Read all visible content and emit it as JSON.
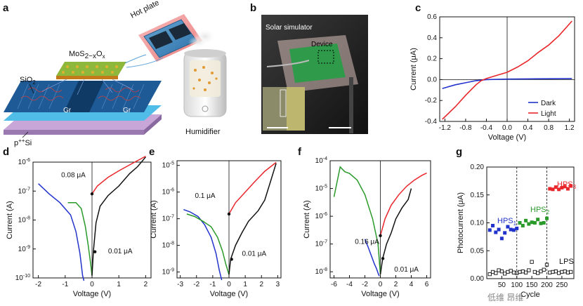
{
  "panels": {
    "a": {
      "label": "a",
      "texts": {
        "hot_plate": "Hot plate",
        "material": "MoS",
        "material_sub": "2−x",
        "material_o": "O",
        "material_o_sub": "x",
        "sio2": "SiO",
        "sio2_sub": "2",
        "gr1": "Gr",
        "gr2": "Gr",
        "substrate": "p",
        "substrate_sup": "++",
        "substrate_si": "Si",
        "humidifier": "Humidifier"
      }
    },
    "b": {
      "label": "b",
      "texts": {
        "solar_simulator": "Solar simulator",
        "device": "Device"
      }
    },
    "c": {
      "label": "c",
      "xlabel": "Voltage (V)",
      "ylabel": "Current (μA)",
      "legend": [
        "Dark",
        "Light"
      ]
    },
    "d": {
      "label": "d",
      "xlabel": "Voltage (V)",
      "ylabel": "Current (A)",
      "ann1": "0.08 μA",
      "ann2": "0.01 μA"
    },
    "e": {
      "label": "e",
      "xlabel": "Voltage (V)",
      "ylabel": "Current (A)",
      "ann1": "0.1 μA",
      "ann2": "0.01 μA"
    },
    "f": {
      "label": "f",
      "xlabel": "Voltage (V)",
      "ylabel": "Current (A)",
      "ann1": "0.16 μA",
      "ann2": "0.01 μA"
    },
    "g": {
      "label": "g",
      "xlabel": "Cycle",
      "ylabel": "Photocurrent (μA)",
      "hps1": "HPS",
      "hps1_sub": "1",
      "hps2": "HPS",
      "hps2_sub": "2",
      "hps3": "HPS",
      "hps3_sub": "3",
      "lps": "LPS"
    }
  },
  "watermark": "低维 昂维",
  "colors": {
    "dark": "#2233cc",
    "light": "#e8262b",
    "green": "#2a9a2a",
    "black": "#111111"
  },
  "chart_data": [
    {
      "panel": "c",
      "type": "line",
      "xlabel": "Voltage (V)",
      "ylabel": "Current (μA)",
      "xlim": [
        -1.3,
        1.3
      ],
      "ylim": [
        -0.4,
        0.6
      ],
      "xticks": [
        "-1.2",
        "-0.8",
        "-0.4",
        "0.0",
        "0.4",
        "0.8",
        "1.2"
      ],
      "yticks": [
        "-0.4",
        "-0.2",
        "0.0",
        "0.2",
        "0.4",
        "0.6"
      ],
      "legend_position": "bottom-right",
      "series": [
        {
          "name": "Dark",
          "color": "#2233cc",
          "x": [
            -1.25,
            -1.0,
            -0.8,
            -0.6,
            -0.4,
            -0.2,
            0.0,
            0.4,
            0.8,
            1.25
          ],
          "y": [
            -0.085,
            -0.05,
            -0.03,
            -0.01,
            0.0,
            0.002,
            0.005,
            0.007,
            0.008,
            0.01
          ]
        },
        {
          "name": "Light",
          "color": "#e8262b",
          "x": [
            -1.25,
            -1.0,
            -0.8,
            -0.6,
            -0.5,
            -0.4,
            -0.2,
            0.0,
            0.2,
            0.4,
            0.6,
            0.8,
            1.0,
            1.25
          ],
          "y": [
            -0.38,
            -0.26,
            -0.15,
            -0.05,
            -0.01,
            0.01,
            0.04,
            0.07,
            0.12,
            0.18,
            0.26,
            0.33,
            0.42,
            0.56
          ]
        }
      ]
    },
    {
      "panel": "d",
      "type": "line",
      "yscale": "log",
      "xlabel": "Voltage (V)",
      "ylabel": "Current (A)",
      "xlim": [
        -2.2,
        2.2
      ],
      "ylim": [
        1e-10,
        1e-06
      ],
      "xticks": [
        "-2",
        "-1",
        "0",
        "1",
        "2"
      ],
      "yticks": [
        "10^-10",
        "10^-9",
        "10^-8",
        "10^-7",
        "10^-6"
      ],
      "annotations": [
        {
          "text": "0.08 μA",
          "x": -1.15,
          "y": 3e-07
        },
        {
          "text": "0.01 μA",
          "x": 0.6,
          "y": 7e-10
        }
      ],
      "series": [
        {
          "color": "#2233cc",
          "x": [
            -2.0,
            -1.6,
            -1.2,
            -0.8,
            -0.6,
            -0.45,
            -0.35,
            -0.3
          ],
          "y": [
            1.8e-07,
            8e-08,
            4e-08,
            1.5e-08,
            4e-09,
            7e-10,
            1.2e-10,
            8e-11
          ]
        },
        {
          "color": "#2a9a2a",
          "x": [
            -0.9,
            -0.6,
            -0.4,
            -0.25,
            -0.15,
            -0.05,
            0.0
          ],
          "y": [
            4e-08,
            4e-08,
            2.5e-08,
            6e-09,
            1.5e-09,
            3e-10,
            1.2e-10
          ]
        },
        {
          "color": "#111111",
          "x": [
            0.0,
            0.05,
            0.15,
            0.3,
            0.6,
            1.0,
            1.4,
            1.7,
            2.0
          ],
          "y": [
            1.2e-10,
            8e-10,
            8e-09,
            3e-08,
            7e-08,
            1.5e-07,
            4e-07,
            7e-07,
            1.5e-06
          ]
        },
        {
          "color": "#e8262b",
          "x": [
            0.0,
            0.2,
            0.6,
            1.0,
            1.5,
            2.0
          ],
          "y": [
            8e-08,
            1.5e-07,
            3e-07,
            5e-07,
            9e-07,
            1.6e-06
          ]
        }
      ]
    },
    {
      "panel": "e",
      "type": "line",
      "yscale": "log",
      "xlabel": "Voltage (V)",
      "ylabel": "Current (A)",
      "xlim": [
        -3.2,
        3.2
      ],
      "ylim": [
        6e-10,
        1.5e-05
      ],
      "xticks": [
        "-3",
        "-2",
        "-1",
        "0",
        "1",
        "2",
        "3"
      ],
      "yticks": [
        "10^-9",
        "10^-8",
        "10^-7",
        "10^-6",
        "10^-5"
      ],
      "annotations": [
        {
          "text": "0.1 μA",
          "x": -2.1,
          "y": 6e-07
        },
        {
          "text": "0.01 μA",
          "x": 0.8,
          "y": 4e-09
        }
      ],
      "series": [
        {
          "color": "#2233cc",
          "x": [
            -2.8,
            -2.4,
            -1.9,
            -1.5,
            -1.1,
            -0.8,
            -0.6,
            -0.45
          ],
          "y": [
            2.2e-07,
            1.8e-07,
            1.2e-07,
            6e-08,
            2e-08,
            5e-09,
            1.2e-09,
            5e-10
          ]
        },
        {
          "color": "#2a9a2a",
          "x": [
            -2.6,
            -2.1,
            -1.6,
            -1.1,
            -0.7,
            -0.4,
            -0.2,
            0.0
          ],
          "y": [
            1.5e-07,
            1.2e-07,
            8e-08,
            5e-08,
            2e-08,
            6e-09,
            2e-09,
            8e-10
          ]
        },
        {
          "color": "#111111",
          "x": [
            0.0,
            0.1,
            0.4,
            0.8,
            1.2,
            1.8,
            2.2,
            2.6,
            2.9
          ],
          "y": [
            8e-10,
            3e-09,
            1e-08,
            3e-08,
            8e-08,
            2e-07,
            5e-07,
            3e-06,
            1.2e-05
          ]
        },
        {
          "color": "#e8262b",
          "x": [
            0.0,
            0.4,
            1.0,
            1.6,
            2.2,
            2.9
          ],
          "y": [
            1.5e-07,
            4e-07,
            1e-06,
            2.5e-06,
            6e-06,
            1.3e-05
          ]
        }
      ]
    },
    {
      "panel": "f",
      "type": "line",
      "yscale": "log",
      "xlabel": "Voltage (V)",
      "ylabel": "Current (A)",
      "xlim": [
        -6.5,
        6.5
      ],
      "ylim": [
        6e-09,
        0.0001
      ],
      "xticks": [
        "-6",
        "-4",
        "-2",
        "0",
        "2",
        "4",
        "6"
      ],
      "yticks": [
        "10^-8",
        "10^-7",
        "10^-6",
        "10^-5",
        "10^-4"
      ],
      "annotations": [
        {
          "text": "0.16 μA",
          "x": -3.3,
          "y": 1e-07
        },
        {
          "text": "0.01 μA",
          "x": 1.8,
          "y": 1e-08
        }
      ],
      "series": [
        {
          "color": "#2233cc",
          "x": [
            -2.0,
            -1.6,
            -1.2,
            -0.8,
            -0.5,
            -0.3,
            -0.15
          ],
          "y": [
            1.5e-07,
            8e-08,
            4e-08,
            2e-08,
            1.3e-08,
            9e-09,
            7e-09
          ]
        },
        {
          "color": "#2a9a2a",
          "x": [
            -6.0,
            -5.2,
            -4.6,
            -4.0,
            -3.0,
            -2.0,
            -1.0,
            -0.3,
            0.0
          ],
          "y": [
            5e-06,
            6e-05,
            4e-05,
            3.5e-05,
            2e-05,
            6e-06,
            8e-07,
            1e-07,
            8e-09
          ]
        },
        {
          "color": "#111111",
          "x": [
            0.0,
            0.3,
            0.8,
            1.4,
            2.0,
            2.8,
            3.6,
            4.0
          ],
          "y": [
            8e-09,
            3e-08,
            1e-07,
            2.5e-07,
            8e-07,
            2e-06,
            4e-06,
            1e-05
          ]
        },
        {
          "color": "#e8262b",
          "x": [
            0.0,
            0.6,
            1.4,
            2.4,
            3.4,
            4.4,
            5.4,
            6.0
          ],
          "y": [
            2e-07,
            8e-07,
            2.5e-06,
            6e-06,
            1.2e-05,
            2e-05,
            3e-05,
            3.6e-05
          ]
        }
      ]
    },
    {
      "panel": "g",
      "type": "scatter",
      "xlabel": "Cycle",
      "ylabel": "Photocurrent (μA)",
      "xlim": [
        0,
        290
      ],
      "ylim": [
        0,
        0.2
      ],
      "xticks": [
        "50",
        "100",
        "150",
        "200",
        "250"
      ],
      "yticks": [
        "0.00",
        "0.05",
        "0.10",
        "0.15",
        "0.20"
      ],
      "dividers": [
        100,
        200
      ],
      "series": [
        {
          "name": "HPS1",
          "color": "#2233cc",
          "x": [
            10,
            20,
            30,
            40,
            50,
            60,
            70,
            80,
            90,
            100
          ],
          "y": [
            0.087,
            0.095,
            0.083,
            0.088,
            0.072,
            0.082,
            0.093,
            0.088,
            0.087,
            0.09
          ]
        },
        {
          "name": "HPS2",
          "color": "#2a9a2a",
          "x": [
            110,
            120,
            130,
            140,
            150,
            160,
            170,
            180,
            190,
            200
          ],
          "y": [
            0.1,
            0.095,
            0.104,
            0.098,
            0.101,
            0.1,
            0.106,
            0.099,
            0.1,
            0.108
          ]
        },
        {
          "name": "HPS3",
          "color": "#e8262b",
          "x": [
            210,
            220,
            230,
            240,
            250,
            260,
            270,
            280
          ],
          "y": [
            0.161,
            0.16,
            0.164,
            0.16,
            0.163,
            0.165,
            0.161,
            0.166
          ]
        },
        {
          "name": "LPS",
          "color": "#111111",
          "x": [
            10,
            20,
            30,
            40,
            50,
            60,
            70,
            80,
            90,
            100,
            110,
            120,
            130,
            140,
            150,
            160,
            170,
            180,
            190,
            200,
            210,
            220,
            230,
            240,
            250,
            260,
            270,
            280
          ],
          "y": [
            0.008,
            0.012,
            0.01,
            0.015,
            0.013,
            0.009,
            0.012,
            0.014,
            0.011,
            0.01,
            0.012,
            0.013,
            0.011,
            0.015,
            0.03,
            0.012,
            0.01,
            0.013,
            0.016,
            0.025,
            0.011,
            0.012,
            0.013,
            0.01,
            0.012,
            0.013,
            0.011,
            0.012
          ]
        }
      ]
    }
  ]
}
